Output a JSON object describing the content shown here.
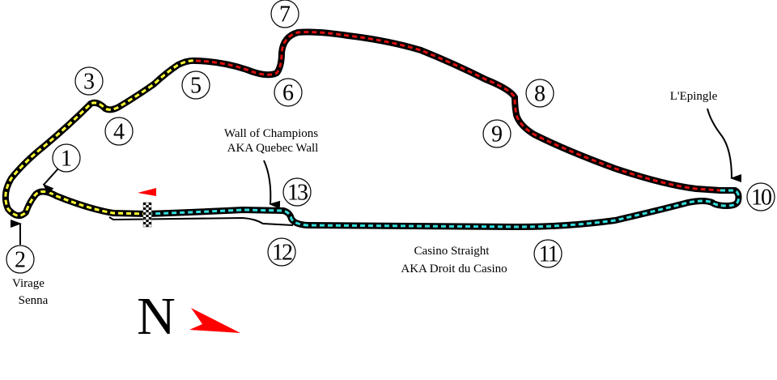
{
  "track": {
    "sector_colors": {
      "sector1": "#ffff33",
      "sector2": "#dd1111",
      "sector3": "#33dddd"
    },
    "outline_color": "#000000"
  },
  "turns": [
    "1",
    "2",
    "3",
    "4",
    "5",
    "6",
    "7",
    "8",
    "9",
    "10",
    "11",
    "12",
    "13"
  ],
  "labels": {
    "virage_senna": [
      "Virage",
      "Senna"
    ],
    "wall_of_champions": [
      "Wall of Champions",
      "AKA Quebec Wall"
    ],
    "epingle": "L'Epingle",
    "casino": [
      "Casino Straight",
      "AKA Droit du Casino"
    ]
  },
  "compass": {
    "letter": "N",
    "arrow_color": "#ff0000"
  },
  "direction_marker_color": "#ff0000",
  "start_finish": "checkered-flag-icon"
}
